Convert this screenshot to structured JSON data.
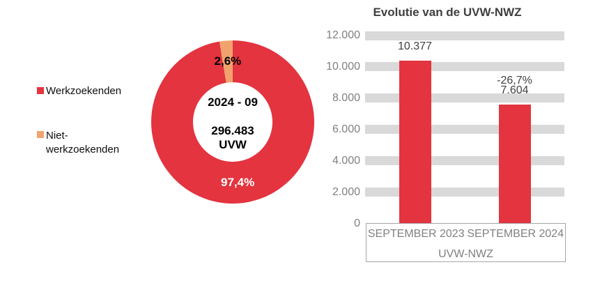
{
  "chart_data": [
    {
      "type": "pie",
      "subtype": "donut",
      "labels": [
        "Werkzoekenden",
        "Niet-werkzoekenden"
      ],
      "values_pct": [
        97.4,
        2.6
      ],
      "value_labels": [
        "97,4%",
        "2,6%"
      ],
      "colors": [
        "#e3343f",
        "#f2a36d"
      ],
      "value_label_colors": [
        "#ffffff",
        "#000000"
      ],
      "start_angle_deg": 0,
      "direction": "clockwise",
      "center": {
        "period": "2024 - 09",
        "value": "296.483",
        "unit": "UVW"
      },
      "legend_position": "left",
      "legend": [
        {
          "label": "Werkzoekenden",
          "color": "#e3343f"
        },
        {
          "label": "Niet-werkzoekenden",
          "color": "#f2a36d"
        }
      ]
    },
    {
      "type": "bar",
      "title": "Evolutie van de UVW-NWZ",
      "categories": [
        "SEPTEMBER 2023",
        "SEPTEMBER 2024"
      ],
      "values": [
        10377,
        7604
      ],
      "bar_value_labels": [
        [
          "10.377"
        ],
        [
          "-26,7%",
          "7.604"
        ]
      ],
      "group_axis_label": "UVW-NWZ",
      "y_ticks": [
        0,
        2000,
        4000,
        6000,
        8000,
        10000,
        12000
      ],
      "y_tick_labels": [
        "0",
        "2.000",
        "4.000",
        "6.000",
        "8.000",
        "10.000",
        "12.000"
      ],
      "ylim": [
        0,
        12000
      ],
      "bar_color": "#e3343f",
      "gridline_style": "thick-bands",
      "gridline_color": "#d9d9d9",
      "legend_position": "none"
    }
  ],
  "colors": {
    "accent_red": "#e3343f",
    "accent_orange": "#f2a36d",
    "gridline_gray": "#d9d9d9",
    "axis_text_gray": "#808080",
    "dark_text": "#404040",
    "box_border_gray": "#a6a6a6"
  }
}
